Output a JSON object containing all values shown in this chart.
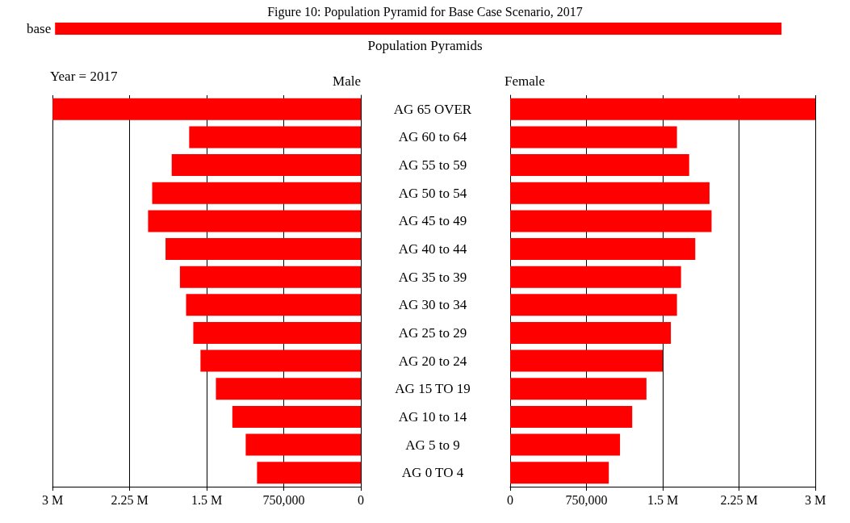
{
  "chart_data": [
    {
      "type": "bar",
      "orientation": "horizontal",
      "title": "Figure 10: Population Pyramid for Base Case Scenario, 2017",
      "subtitle": "Population Pyramids",
      "xlabel": "Male",
      "annotations": [
        "Year = 2017"
      ],
      "legend": "top left",
      "grid": "x",
      "categories": [
        "AG 65 OVER",
        "AG 60 to 64",
        "AG 55 to 59",
        "AG 50 to 54",
        "AG 45 to 49",
        "AG 40 to 44",
        "AG 35 to 39",
        "AG 30 to 34",
        "AG 25 to 29",
        "AG 20 to 24",
        "AG 15 TO 19",
        "AG 10 to 14",
        "AG 5 to 9",
        "AG 0 TO 4"
      ],
      "xlim": [
        3000000,
        0
      ],
      "xticks": [
        {
          "value": 3000000,
          "label": "3 M"
        },
        {
          "value": 2250000,
          "label": "2.25 M"
        },
        {
          "value": 1500000,
          "label": "1.5 M"
        },
        {
          "value": 750000,
          "label": "750,000"
        },
        0
      ],
      "series": [
        {
          "name": "base",
          "color": "#ff0000",
          "values": [
            3000000,
            1670000,
            1840000,
            2030000,
            2070000,
            1900000,
            1760000,
            1700000,
            1630000,
            1560000,
            1410000,
            1250000,
            1120000,
            1010000
          ]
        }
      ]
    },
    {
      "type": "bar",
      "orientation": "horizontal",
      "xlabel": "Female",
      "legend": false,
      "grid": "x",
      "categories": [
        null,
        null,
        null,
        null,
        null,
        null,
        null,
        null,
        null,
        null,
        null,
        null,
        null,
        null
      ],
      "xlim": [
        0,
        3000000
      ],
      "xticks": [
        0,
        {
          "value": 750000,
          "label": "750,000"
        },
        {
          "value": 1500000,
          "label": "1.5 M"
        },
        {
          "value": 2250000,
          "label": "2.25 M"
        },
        {
          "value": 3000000,
          "label": "3 M"
        }
      ],
      "series": [
        {
          "color": "#ff0000",
          "values": [
            3000000,
            1640000,
            1760000,
            1960000,
            1980000,
            1820000,
            1680000,
            1640000,
            1580000,
            1500000,
            1340000,
            1200000,
            1080000,
            970000
          ]
        }
      ]
    }
  ]
}
